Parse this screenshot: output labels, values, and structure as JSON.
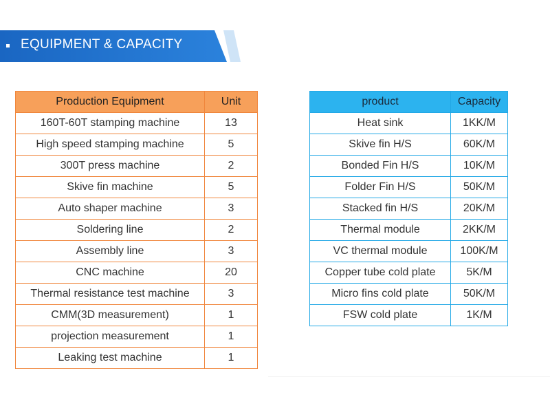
{
  "header": {
    "title": "EQUIPMENT & CAPACITY"
  },
  "colors": {
    "banner": "#1f6fc8",
    "equipment_header": "#f7a05a",
    "equipment_border": "#f0863c",
    "capacity_header": "#2cb3ef",
    "capacity_border": "#22a8e6"
  },
  "equipment": {
    "headers": [
      "Production Equipment",
      "Unit"
    ],
    "rows": [
      [
        "160T-60T stamping machine",
        "13"
      ],
      [
        "High speed stamping machine",
        "5"
      ],
      [
        "300T press machine",
        "2"
      ],
      [
        "Skive fin machine",
        "5"
      ],
      [
        "Auto shaper machine",
        "3"
      ],
      [
        "Soldering line",
        "2"
      ],
      [
        "Assembly line",
        "3"
      ],
      [
        "CNC machine",
        "20"
      ],
      [
        "Thermal resistance test machine",
        "3"
      ],
      [
        "CMM(3D measurement)",
        "1"
      ],
      [
        "projection measurement",
        "1"
      ],
      [
        "Leaking test machine",
        "1"
      ]
    ]
  },
  "capacity": {
    "headers": [
      "product",
      "Capacity"
    ],
    "rows": [
      [
        "Heat sink",
        "1KK/M"
      ],
      [
        "Skive fin H/S",
        "60K/M"
      ],
      [
        "Bonded Fin H/S",
        "10K/M"
      ],
      [
        "Folder Fin H/S",
        "50K/M"
      ],
      [
        "Stacked fin H/S",
        "20K/M"
      ],
      [
        "Thermal module",
        "2KK/M"
      ],
      [
        "VC thermal module",
        "100K/M"
      ],
      [
        "Copper tube cold plate",
        "5K/M"
      ],
      [
        "Micro fins cold plate",
        "50K/M"
      ],
      [
        "FSW cold plate",
        "1K/M"
      ]
    ]
  }
}
